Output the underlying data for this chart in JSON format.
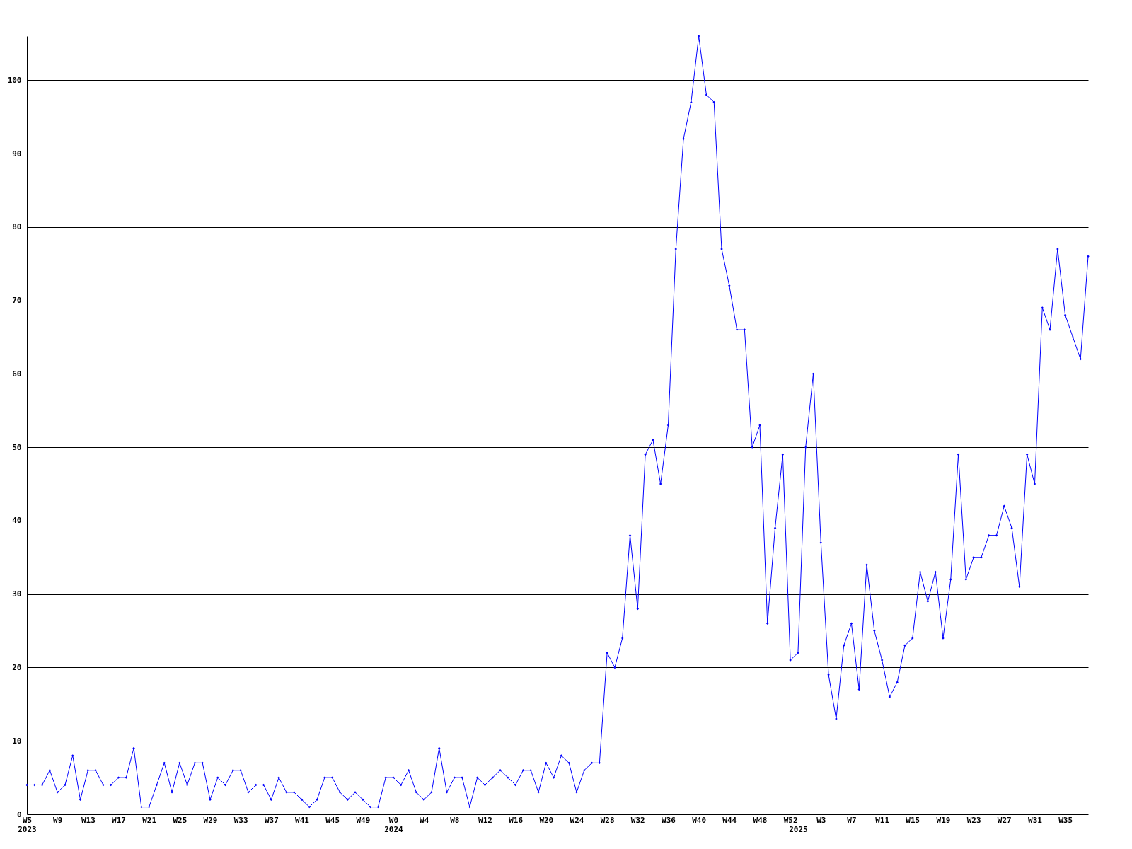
{
  "chart_data": {
    "type": "line",
    "categories": [
      "W5\n2023",
      null,
      null,
      null,
      "W9",
      null,
      null,
      null,
      "W13",
      null,
      null,
      null,
      "W17",
      null,
      null,
      null,
      "W21",
      null,
      null,
      null,
      "W25",
      null,
      null,
      null,
      "W29",
      null,
      null,
      null,
      "W33",
      null,
      null,
      null,
      "W37",
      null,
      null,
      null,
      "W41",
      null,
      null,
      null,
      "W45",
      null,
      null,
      null,
      "W49",
      null,
      null,
      null,
      "W0\n2024",
      null,
      null,
      null,
      "W4",
      null,
      null,
      null,
      "W8",
      null,
      null,
      null,
      "W12",
      null,
      null,
      null,
      "W16",
      null,
      null,
      null,
      "W20",
      null,
      null,
      null,
      "W24",
      null,
      null,
      null,
      "W28",
      null,
      null,
      null,
      "W32",
      null,
      null,
      null,
      "W36",
      null,
      null,
      null,
      "W40",
      null,
      null,
      null,
      "W44",
      null,
      null,
      null,
      "W48",
      null,
      null,
      null,
      "W52",
      "\n2025",
      null,
      null,
      "W3",
      null,
      null,
      null,
      "W7",
      null,
      null,
      null,
      "W11",
      null,
      null,
      null,
      "W15",
      null,
      null,
      null,
      "W19",
      null,
      null,
      null,
      "W23",
      null,
      null,
      null,
      "W27",
      null,
      null,
      null,
      "W31",
      null,
      null,
      null,
      "W35",
      null,
      null,
      null
    ],
    "series": [
      {
        "color": "#0000ff",
        "values": [
          4,
          4,
          4,
          6,
          3,
          4,
          8,
          2,
          6,
          6,
          4,
          4,
          5,
          5,
          9,
          1,
          1,
          4,
          7,
          3,
          7,
          4,
          7,
          7,
          2,
          5,
          4,
          6,
          6,
          3,
          4,
          4,
          2,
          5,
          3,
          3,
          2,
          1,
          2,
          5,
          5,
          3,
          2,
          3,
          2,
          1,
          1,
          5,
          5,
          4,
          6,
          3,
          2,
          3,
          9,
          3,
          5,
          5,
          1,
          5,
          4,
          5,
          6,
          5,
          4,
          6,
          6,
          3,
          7,
          5,
          8,
          7,
          3,
          6,
          7,
          7,
          22,
          20,
          24,
          38,
          28,
          49,
          51,
          45,
          53,
          77,
          92,
          97,
          106,
          98,
          97,
          77,
          72,
          66,
          66,
          50,
          53,
          26,
          39,
          49,
          21,
          22,
          50,
          60,
          37,
          19,
          13,
          23,
          26,
          17,
          34,
          25,
          21,
          16,
          18,
          23,
          24,
          33,
          29,
          33,
          24,
          32,
          49,
          32,
          35,
          35,
          38,
          38,
          42,
          39,
          31,
          49,
          45,
          69,
          66,
          77,
          68,
          65,
          62,
          76
        ]
      }
    ],
    "ylim": [
      0,
      106
    ],
    "yticks": [
      0,
      10,
      20,
      30,
      40,
      50,
      60,
      70,
      80,
      90,
      100
    ],
    "grid": "y",
    "marker": "diamond",
    "line_style": "solid"
  }
}
